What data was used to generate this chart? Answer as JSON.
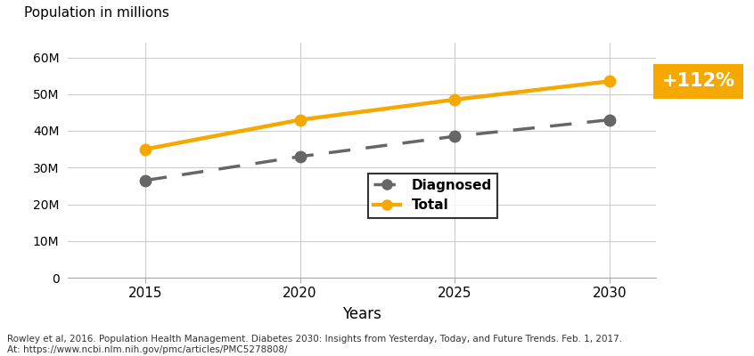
{
  "years": [
    2015,
    2020,
    2025,
    2030
  ],
  "diagnosed": [
    26.5,
    33.0,
    38.5,
    43.0
  ],
  "total": [
    35.0,
    43.0,
    48.5,
    53.5
  ],
  "diagnosed_color": "#666666",
  "total_color": "#F5A800",
  "ylabel": "Population in millions",
  "xlabel": "Years",
  "yticks": [
    0,
    10,
    20,
    30,
    40,
    50,
    60
  ],
  "ytick_labels": [
    "0",
    "10M",
    "20M",
    "30M",
    "40M",
    "50M",
    "60M"
  ],
  "xticks": [
    2015,
    2020,
    2025,
    2030
  ],
  "xlim": [
    2012.5,
    2031.5
  ],
  "ylim": [
    0,
    64
  ],
  "annotation_text": "+112%",
  "annotation_bg": "#F5A800",
  "annotation_fontsize": 15,
  "legend_labels": [
    "Diagnosed",
    "Total"
  ],
  "footnote_line1": "Rowley et al, 2016. Population Health Management. Diabetes 2030: Insights from Yesterday, Today, and Future Trends. Feb. 1, 2017.",
  "footnote_line2": "At: https://www.ncbi.nlm.nih.gov/pmc/articles/PMC5278808/",
  "background_color": "#ffffff",
  "grid_color": "#cccccc"
}
